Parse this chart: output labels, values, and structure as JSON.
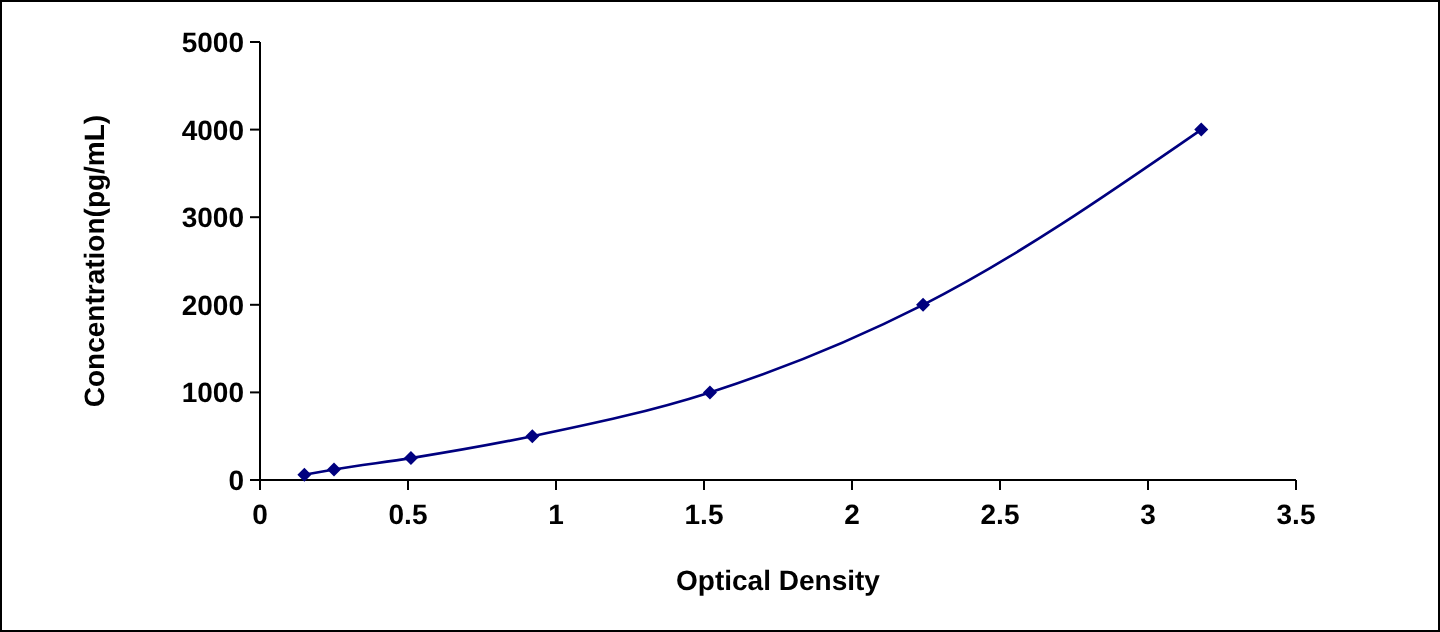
{
  "chart_data": {
    "type": "line",
    "xlabel": "Optical Density",
    "ylabel": "Concentration(pg/mL)",
    "xlim": [
      0,
      3.5
    ],
    "xticks": [
      0,
      0.5,
      1,
      1.5,
      2,
      2.5,
      3,
      3.5
    ],
    "ylim": [
      0,
      5000
    ],
    "yticks": [
      0,
      1000,
      2000,
      3000,
      4000,
      5000
    ],
    "series": [
      {
        "color": "#00007f",
        "x": [
          0.15,
          0.25,
          0.51,
          0.92,
          1.52,
          2.24,
          3.18
        ],
        "values": [
          60,
          120,
          250,
          500,
          1000,
          2000,
          4000
        ]
      }
    ],
    "marker": "diamond",
    "line_style": "solid"
  }
}
